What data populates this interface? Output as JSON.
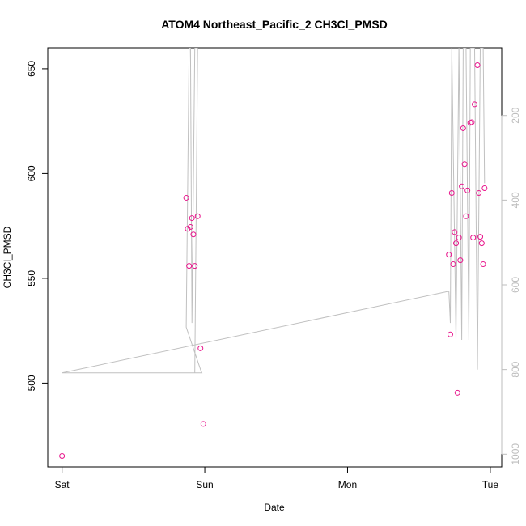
{
  "chart_data": {
    "type": "scatter",
    "title": "ATOM4 Northeast_Pacific_2 CH3Cl_PMSD",
    "xlabel": "Date",
    "ylabel": "CH3Cl_PMSD",
    "x_ticks": [
      {
        "label": "Sat",
        "value": 0
      },
      {
        "label": "Sun",
        "value": 1
      },
      {
        "label": "Mon",
        "value": 2
      },
      {
        "label": "Tue",
        "value": 3
      }
    ],
    "xlim": [
      -0.1,
      3.08
    ],
    "ylim": [
      460,
      660
    ],
    "y_ticks": [
      500,
      550,
      600,
      650
    ],
    "right_axis": {
      "ticks": [
        200,
        400,
        600,
        800,
        1000
      ],
      "lim": [
        1030,
        40
      ],
      "color": "#bdbdbd"
    },
    "series": [
      {
        "marker": "circle-open",
        "color": "#e8168c",
        "points": [
          {
            "x": 0.0,
            "y": 465.2
          },
          {
            "x": 0.87,
            "y": 588.4
          },
          {
            "x": 0.88,
            "y": 573.6
          },
          {
            "x": 0.89,
            "y": 555.9
          },
          {
            "x": 0.9,
            "y": 574.5
          },
          {
            "x": 0.91,
            "y": 578.7
          },
          {
            "x": 0.92,
            "y": 570.9
          },
          {
            "x": 0.93,
            "y": 555.9
          },
          {
            "x": 0.95,
            "y": 579.6
          },
          {
            "x": 0.97,
            "y": 516.6
          },
          {
            "x": 0.99,
            "y": 480.5
          },
          {
            "x": 2.71,
            "y": 561.3
          },
          {
            "x": 2.72,
            "y": 523.2
          },
          {
            "x": 2.73,
            "y": 590.7
          },
          {
            "x": 2.74,
            "y": 556.7
          },
          {
            "x": 2.75,
            "y": 572.0
          },
          {
            "x": 2.76,
            "y": 566.7
          },
          {
            "x": 2.77,
            "y": 495.4
          },
          {
            "x": 2.78,
            "y": 569.4
          },
          {
            "x": 2.79,
            "y": 558.6
          },
          {
            "x": 2.8,
            "y": 593.9
          },
          {
            "x": 2.81,
            "y": 621.6
          },
          {
            "x": 2.82,
            "y": 604.5
          },
          {
            "x": 2.83,
            "y": 579.6
          },
          {
            "x": 2.84,
            "y": 591.9
          },
          {
            "x": 2.86,
            "y": 624.2
          },
          {
            "x": 2.87,
            "y": 624.5
          },
          {
            "x": 2.88,
            "y": 569.4
          },
          {
            "x": 2.89,
            "y": 633.0
          },
          {
            "x": 2.91,
            "y": 651.7
          },
          {
            "x": 2.92,
            "y": 590.7
          },
          {
            "x": 2.93,
            "y": 569.8
          },
          {
            "x": 2.94,
            "y": 566.7
          },
          {
            "x": 2.95,
            "y": 556.7
          },
          {
            "x": 2.96,
            "y": 593.0
          }
        ]
      },
      {
        "marker": "line",
        "color": "#c0c0c0",
        "axis": "right",
        "points": [
          {
            "x": 0.0,
            "y": 808
          },
          {
            "x": 0.98,
            "y": 808
          },
          {
            "x": 0.97,
            "y": 800
          },
          {
            "x": 0.87,
            "y": 700
          },
          {
            "x": 0.89,
            "y": 40
          },
          {
            "x": 0.9,
            "y": 40
          },
          {
            "x": 0.91,
            "y": 690
          },
          {
            "x": 0.93,
            "y": 40
          },
          {
            "x": 0.95,
            "y": 40
          },
          {
            "x": 0.93,
            "y": 808
          },
          {
            "x": 0.0,
            "y": 808
          },
          {
            "x": 2.71,
            "y": 615
          },
          {
            "x": 2.72,
            "y": 690
          },
          {
            "x": 2.73,
            "y": 40
          },
          {
            "x": 2.76,
            "y": 730
          },
          {
            "x": 2.78,
            "y": 40
          },
          {
            "x": 2.8,
            "y": 730
          },
          {
            "x": 2.81,
            "y": 40
          },
          {
            "x": 2.83,
            "y": 40
          },
          {
            "x": 2.85,
            "y": 730
          },
          {
            "x": 2.86,
            "y": 40
          },
          {
            "x": 2.87,
            "y": 40
          },
          {
            "x": 2.89,
            "y": 40
          },
          {
            "x": 2.91,
            "y": 800
          },
          {
            "x": 2.93,
            "y": 40
          },
          {
            "x": 2.95,
            "y": 40
          },
          {
            "x": 2.96,
            "y": 360
          }
        ]
      }
    ]
  }
}
